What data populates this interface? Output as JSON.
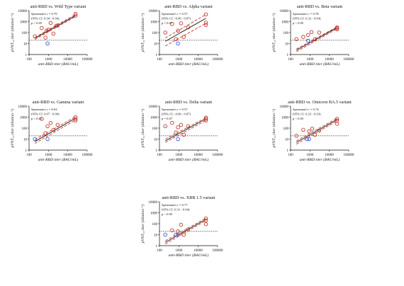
{
  "colors": {
    "dot_red": "#c0392b",
    "dot_blue": "#3a5bd9",
    "fit_line": "#111111",
    "ci_line": "#c0392b",
    "threshold": "#111111"
  },
  "common": {
    "xlabel": "anti-RBD titer (BAU/mL)",
    "ylabel": "pVNT₅₀ titer (dilution⁻¹)",
    "xticks": [
      "100",
      "1000",
      "10000",
      "100000"
    ],
    "yticks": [
      "1",
      "10",
      "100",
      "1000",
      "10000"
    ]
  },
  "chart_data": [
    {
      "type": "scatter",
      "title": "anti-RBD vs. Wild Type variant",
      "stats": [
        "Spearman's r = 0.79",
        "(95% CI: 0.34 - 0.94)",
        "p < 0.05"
      ],
      "x_scale": "log",
      "y_scale": "log",
      "xlim": [
        100,
        100000
      ],
      "ylim": [
        1,
        10000
      ],
      "threshold": 20,
      "fit": {
        "x": [
          200,
          25000
        ],
        "y": [
          30,
          3500
        ]
      },
      "ci_upper": {
        "x": [
          200,
          25000
        ],
        "y": [
          36,
          4500
        ]
      },
      "ci_lower": {
        "x": [
          200,
          25000
        ],
        "y": [
          24,
          2800
        ]
      },
      "points": [
        {
          "x": 200,
          "y": 45,
          "c": "red"
        },
        {
          "x": 450,
          "y": 260,
          "c": "red"
        },
        {
          "x": 700,
          "y": 35,
          "c": "red"
        },
        {
          "x": 800,
          "y": 150,
          "c": "red"
        },
        {
          "x": 1000,
          "y": 180,
          "c": "red"
        },
        {
          "x": 1300,
          "y": 750,
          "c": "red"
        },
        {
          "x": 1800,
          "y": 80,
          "c": "red"
        },
        {
          "x": 2500,
          "y": 400,
          "c": "red"
        },
        {
          "x": 3000,
          "y": 450,
          "c": "red"
        },
        {
          "x": 25000,
          "y": 3500,
          "c": "red"
        },
        {
          "x": 25000,
          "y": 5000,
          "c": "red"
        },
        {
          "x": 900,
          "y": 10,
          "c": "blue"
        }
      ]
    },
    {
      "type": "scatter",
      "title": "anti-RBD vs. Alpha variant",
      "stats": [
        "Spearman's r = 0.57",
        "(95% CI: -0.06 - 0.87)",
        "p = 0.07"
      ],
      "x_scale": "log",
      "y_scale": "log",
      "xlim": [
        100,
        100000
      ],
      "ylim": [
        1,
        10000
      ],
      "threshold": 20,
      "fit": {
        "x": [
          200,
          25000
        ],
        "y": [
          16,
          2000
        ]
      },
      "ci_upper": {
        "x": [
          200,
          25000
        ],
        "y": [
          32,
          4500
        ]
      },
      "ci_lower": {
        "x": [
          200,
          25000
        ],
        "y": [
          6,
          700
        ]
      },
      "points": [
        {
          "x": 200,
          "y": 100,
          "c": "red"
        },
        {
          "x": 450,
          "y": 600,
          "c": "red"
        },
        {
          "x": 700,
          "y": 25,
          "c": "red"
        },
        {
          "x": 900,
          "y": 150,
          "c": "red"
        },
        {
          "x": 1300,
          "y": 700,
          "c": "red"
        },
        {
          "x": 1800,
          "y": 40,
          "c": "red"
        },
        {
          "x": 3000,
          "y": 300,
          "c": "red"
        },
        {
          "x": 25000,
          "y": 4500,
          "c": "red"
        },
        {
          "x": 25000,
          "y": 800,
          "c": "red"
        },
        {
          "x": 25000,
          "y": 500,
          "c": "red"
        },
        {
          "x": 900,
          "y": 10,
          "c": "blue"
        }
      ]
    },
    {
      "type": "scatter",
      "title": "anti-RBD vs. Beta variant",
      "stats": [
        "Spearman's r = 0.78",
        "(95% CI: 0.32 - 0.94)",
        "p < 0.05"
      ],
      "x_scale": "log",
      "y_scale": "log",
      "xlim": [
        100,
        100000
      ],
      "ylim": [
        1,
        10000
      ],
      "threshold": 20,
      "fit": {
        "x": [
          200,
          25000
        ],
        "y": [
          2.5,
          280
        ]
      },
      "ci_upper": {
        "x": [
          200,
          25000
        ],
        "y": [
          3.2,
          330
        ]
      },
      "ci_lower": {
        "x": [
          200,
          25000
        ],
        "y": [
          1.8,
          220
        ]
      },
      "points": [
        {
          "x": 200,
          "y": 25,
          "c": "red"
        },
        {
          "x": 450,
          "y": 40,
          "c": "red"
        },
        {
          "x": 800,
          "y": 60,
          "c": "red"
        },
        {
          "x": 1200,
          "y": 110,
          "c": "red"
        },
        {
          "x": 1800,
          "y": 25,
          "c": "red"
        },
        {
          "x": 3000,
          "y": 100,
          "c": "red"
        },
        {
          "x": 25000,
          "y": 300,
          "c": "red"
        },
        {
          "x": 25000,
          "y": 250,
          "c": "red"
        },
        {
          "x": 25000,
          "y": 200,
          "c": "red"
        },
        {
          "x": 800,
          "y": 18,
          "c": "blue"
        }
      ]
    },
    {
      "type": "scatter",
      "title": "anti-RBD vs. Gamma variant",
      "stats": [
        "Spearman's r = 0.63",
        "(95% CI: 0.07 - 0.90)",
        "p < 0.05"
      ],
      "x_scale": "log",
      "y_scale": "log",
      "xlim": [
        100,
        100000
      ],
      "ylim": [
        1,
        10000
      ],
      "threshold": 20,
      "fit": {
        "x": [
          200,
          25000
        ],
        "y": [
          6,
          800
        ]
      },
      "ci_upper": {
        "x": [
          200,
          25000
        ],
        "y": [
          9,
          1100
        ]
      },
      "ci_lower": {
        "x": [
          200,
          25000
        ],
        "y": [
          4,
          550
        ]
      },
      "points": [
        {
          "x": 450,
          "y": 700,
          "c": "red"
        },
        {
          "x": 700,
          "y": 35,
          "c": "red"
        },
        {
          "x": 900,
          "y": 150,
          "c": "red"
        },
        {
          "x": 1300,
          "y": 300,
          "c": "red"
        },
        {
          "x": 1800,
          "y": 70,
          "c": "red"
        },
        {
          "x": 3000,
          "y": 200,
          "c": "red"
        },
        {
          "x": 25000,
          "y": 1000,
          "c": "red"
        },
        {
          "x": 25000,
          "y": 700,
          "c": "red"
        },
        {
          "x": 25000,
          "y": 500,
          "c": "red"
        },
        {
          "x": 200,
          "y": 10,
          "c": "blue"
        },
        {
          "x": 900,
          "y": 10,
          "c": "blue"
        }
      ]
    },
    {
      "type": "scatter",
      "title": "anti-RBD vs. Delta variant",
      "stats": [
        "Spearman's r = 0.57",
        "(95% CI: -0.06 - 0.87)",
        "p = 0.07"
      ],
      "x_scale": "log",
      "y_scale": "log",
      "xlim": [
        100,
        100000
      ],
      "ylim": [
        1,
        10000
      ],
      "threshold": 20,
      "fit": {
        "x": [
          200,
          25000
        ],
        "y": [
          7,
          700
        ]
      },
      "ci_upper": {
        "x": [
          200,
          25000
        ],
        "y": [
          10,
          900
        ]
      },
      "ci_lower": {
        "x": [
          200,
          25000
        ],
        "y": [
          5,
          500
        ]
      },
      "points": [
        {
          "x": 200,
          "y": 150,
          "c": "red"
        },
        {
          "x": 450,
          "y": 300,
          "c": "red"
        },
        {
          "x": 700,
          "y": 40,
          "c": "red"
        },
        {
          "x": 900,
          "y": 120,
          "c": "red"
        },
        {
          "x": 1300,
          "y": 200,
          "c": "red"
        },
        {
          "x": 1800,
          "y": 25,
          "c": "red"
        },
        {
          "x": 3000,
          "y": 150,
          "c": "red"
        },
        {
          "x": 25000,
          "y": 900,
          "c": "red"
        },
        {
          "x": 25000,
          "y": 700,
          "c": "red"
        },
        {
          "x": 25000,
          "y": 500,
          "c": "red"
        },
        {
          "x": 900,
          "y": 10,
          "c": "blue"
        }
      ]
    },
    {
      "type": "scatter",
      "title": "anti-RBD vs. Omicron BA.5 variant",
      "stats": [
        "Spearman's r = 0.74",
        "(95% CI: 0.23 - 0.93)",
        "p < 0.05"
      ],
      "x_scale": "log",
      "y_scale": "log",
      "xlim": [
        100,
        100000
      ],
      "ylim": [
        1,
        10000
      ],
      "threshold": 20,
      "fit": {
        "x": [
          200,
          25000
        ],
        "y": [
          5,
          600
        ]
      },
      "ci_upper": {
        "x": [
          200,
          25000
        ],
        "y": [
          7,
          800
        ]
      },
      "ci_lower": {
        "x": [
          200,
          25000
        ],
        "y": [
          3.5,
          450
        ]
      },
      "points": [
        {
          "x": 200,
          "y": 20,
          "c": "red"
        },
        {
          "x": 450,
          "y": 70,
          "c": "red"
        },
        {
          "x": 900,
          "y": 50,
          "c": "red"
        },
        {
          "x": 1300,
          "y": 90,
          "c": "red"
        },
        {
          "x": 1800,
          "y": 25,
          "c": "red"
        },
        {
          "x": 3000,
          "y": 60,
          "c": "red"
        },
        {
          "x": 25000,
          "y": 700,
          "c": "red"
        },
        {
          "x": 25000,
          "y": 500,
          "c": "red"
        },
        {
          "x": 25000,
          "y": 250,
          "c": "red"
        },
        {
          "x": 700,
          "y": 10,
          "c": "blue"
        },
        {
          "x": 900,
          "y": 10,
          "c": "blue"
        }
      ]
    },
    {
      "type": "scatter",
      "title": "anti-RBD vs. XBB 1.5 variant",
      "stats": [
        "Spearman's r = 0.77",
        "(95% CI: 0.31 - 0.94)",
        "p < 0.05"
      ],
      "x_scale": "log",
      "y_scale": "log",
      "xlim": [
        100,
        100000
      ],
      "ylim": [
        1,
        10000
      ],
      "threshold": 20,
      "fit": {
        "x": [
          200,
          25000
        ],
        "y": [
          2,
          250
        ]
      },
      "ci_upper": {
        "x": [
          200,
          25000
        ],
        "y": [
          2.8,
          320
        ]
      },
      "ci_lower": {
        "x": [
          200,
          25000
        ],
        "y": [
          1.4,
          190
        ]
      },
      "points": [
        {
          "x": 450,
          "y": 25,
          "c": "red"
        },
        {
          "x": 900,
          "y": 20,
          "c": "red"
        },
        {
          "x": 1300,
          "y": 80,
          "c": "red"
        },
        {
          "x": 1800,
          "y": 10,
          "c": "red"
        },
        {
          "x": 3000,
          "y": 30,
          "c": "red"
        },
        {
          "x": 25000,
          "y": 300,
          "c": "red"
        },
        {
          "x": 25000,
          "y": 200,
          "c": "red"
        },
        {
          "x": 25000,
          "y": 90,
          "c": "red"
        },
        {
          "x": 200,
          "y": 10,
          "c": "blue"
        },
        {
          "x": 700,
          "y": 10,
          "c": "blue"
        },
        {
          "x": 900,
          "y": 10,
          "c": "blue"
        }
      ]
    }
  ]
}
